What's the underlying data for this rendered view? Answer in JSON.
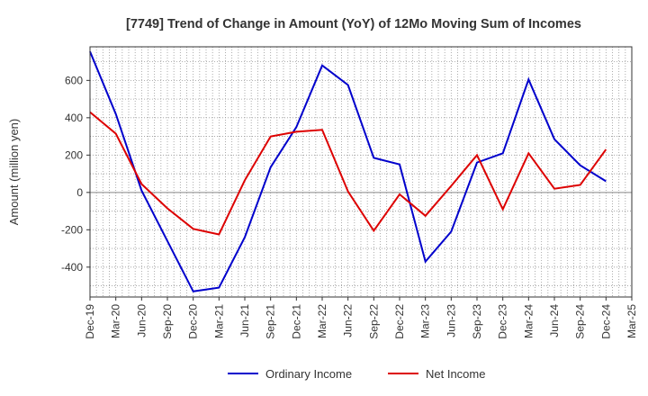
{
  "chart_data": {
    "type": "line",
    "title": "[7749]  Trend of Change in Amount (YoY) of 12Mo Moving Sum of Incomes",
    "ylabel": "Amount (million yen)",
    "xlabel": "",
    "ylim": [
      -560,
      780
    ],
    "yticks": [
      -400,
      -200,
      0,
      200,
      400,
      600
    ],
    "grid": true,
    "legend_position": "bottom",
    "categories": [
      "Dec-19",
      "Mar-20",
      "Jun-20",
      "Sep-20",
      "Dec-20",
      "Mar-21",
      "Jun-21",
      "Sep-21",
      "Dec-21",
      "Mar-22",
      "Jun-22",
      "Sep-22",
      "Dec-22",
      "Mar-23",
      "Jun-23",
      "Sep-23",
      "Dec-23",
      "Mar-24",
      "Jun-24",
      "Sep-24",
      "Dec-24",
      "Mar-25"
    ],
    "series": [
      {
        "name": "Ordinary Income",
        "color": "#0000cc",
        "values": [
          755,
          420,
          10,
          -260,
          -530,
          -510,
          -240,
          135,
          350,
          680,
          575,
          185,
          150,
          -370,
          -210,
          160,
          210,
          605,
          285,
          145,
          60,
          null
        ]
      },
      {
        "name": "Net Income",
        "color": "#dd0000",
        "values": [
          430,
          315,
          45,
          -85,
          -195,
          -225,
          65,
          300,
          325,
          335,
          5,
          -205,
          -10,
          -125,
          35,
          200,
          -90,
          210,
          20,
          40,
          230,
          null
        ]
      }
    ]
  }
}
